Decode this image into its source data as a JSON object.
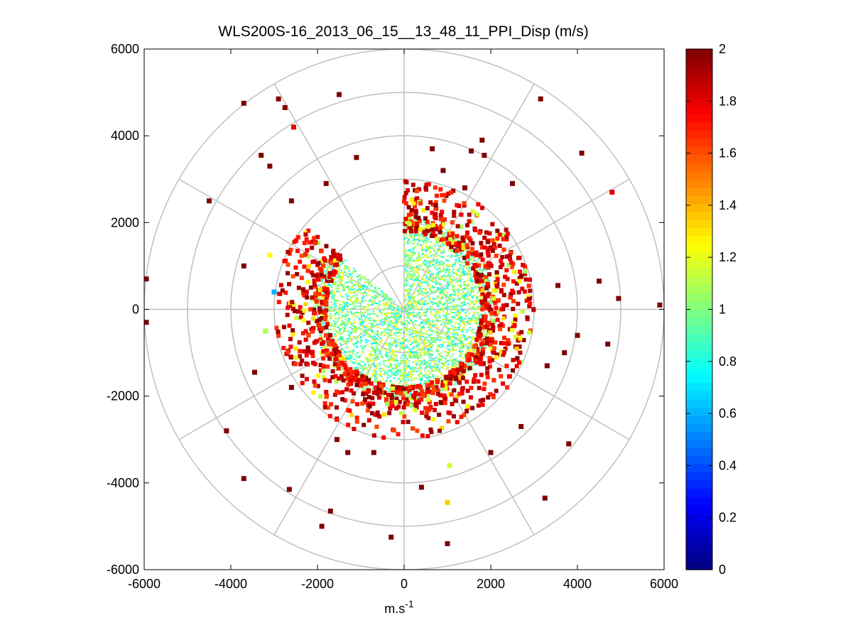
{
  "chart_data": {
    "type": "polar scatter (PPI)",
    "title": "WLS200S-16_2013_06_15__13_48_11_PPI_Disp (m/s)",
    "xlabel_base": "m.s",
    "xlabel_exponent": "-1",
    "ylabel": "",
    "xlim": [
      -6000,
      6000
    ],
    "ylim": [
      -6000,
      6000
    ],
    "xticks": [
      "-6000",
      "-4000",
      "-2000",
      "0",
      "2000",
      "4000",
      "6000"
    ],
    "yticks": [
      "6000",
      "4000",
      "2000",
      "0",
      "-2000",
      "-4000",
      "-6000"
    ],
    "xtick_values": [
      -6000,
      -4000,
      -2000,
      0,
      2000,
      4000,
      6000
    ],
    "ytick_values": [
      6000,
      4000,
      2000,
      0,
      -2000,
      -4000,
      -6000
    ],
    "grid": true,
    "polar_grid": {
      "rings": [
        1000,
        2000,
        3000,
        4000,
        5000,
        6000
      ],
      "spokes_deg": [
        0,
        30,
        60,
        90,
        120,
        150,
        180,
        210,
        240,
        270,
        300,
        330
      ]
    },
    "colorbar": {
      "colormap": "jet",
      "range": [
        0,
        2
      ],
      "ticks": [
        "2",
        "1.8",
        "1.6",
        "1.4",
        "1.2",
        "1",
        "0.8",
        "0.6",
        "0.4",
        "0.2",
        "0"
      ],
      "tick_values": [
        2,
        1.8,
        1.6,
        1.4,
        1.2,
        1,
        0.8,
        0.6,
        0.4,
        0.2,
        0
      ]
    },
    "data_description": {
      "dense_core_radius": 2100,
      "core_value_range": [
        0.7,
        1.3
      ],
      "edge_band_radius": [
        1800,
        3000
      ],
      "edge_value_range": [
        1.6,
        2.0
      ],
      "missing_sector_deg": [
        -50,
        0
      ]
    },
    "outliers": [
      {
        "x": -5950,
        "y": 700,
        "v": 2.0
      },
      {
        "x": -5950,
        "y": -300,
        "v": 2.0
      },
      {
        "x": -4500,
        "y": 2500,
        "v": 2.0
      },
      {
        "x": -3700,
        "y": 4750,
        "v": 2.0
      },
      {
        "x": -2900,
        "y": 4850,
        "v": 2.0
      },
      {
        "x": -2750,
        "y": 4650,
        "v": 2.0
      },
      {
        "x": -2550,
        "y": 4200,
        "v": 1.8
      },
      {
        "x": -1500,
        "y": 4950,
        "v": 2.0
      },
      {
        "x": -3300,
        "y": 3550,
        "v": 2.0
      },
      {
        "x": -3100,
        "y": 3300,
        "v": 2.0
      },
      {
        "x": 3150,
        "y": 4850,
        "v": 2.0
      },
      {
        "x": 4100,
        "y": 3600,
        "v": 2.0
      },
      {
        "x": 4800,
        "y": 2700,
        "v": 1.8
      },
      {
        "x": 5900,
        "y": 100,
        "v": 2.0
      },
      {
        "x": 4950,
        "y": 250,
        "v": 2.0
      },
      {
        "x": 4500,
        "y": 650,
        "v": 2.0
      },
      {
        "x": 3700,
        "y": -1000,
        "v": 2.0
      },
      {
        "x": 4700,
        "y": -800,
        "v": 2.0
      },
      {
        "x": 3800,
        "y": -3100,
        "v": 2.0
      },
      {
        "x": 3250,
        "y": -4350,
        "v": 2.0
      },
      {
        "x": 1000,
        "y": -5400,
        "v": 2.0
      },
      {
        "x": 1000,
        "y": -4450,
        "v": 1.35
      },
      {
        "x": -300,
        "y": -5250,
        "v": 2.0
      },
      {
        "x": -1900,
        "y": -5000,
        "v": 2.0
      },
      {
        "x": -3700,
        "y": -3900,
        "v": 2.0
      },
      {
        "x": -4100,
        "y": -2800,
        "v": 2.0
      },
      {
        "x": -2650,
        "y": -4150,
        "v": 2.0
      },
      {
        "x": -1700,
        "y": -4650,
        "v": 2.0
      },
      {
        "x": -3700,
        "y": 1000,
        "v": 2.0
      },
      {
        "x": -3100,
        "y": 1250,
        "v": 1.25
      },
      {
        "x": -3000,
        "y": 400,
        "v": 0.6
      },
      {
        "x": -3200,
        "y": -500,
        "v": 1.1
      },
      {
        "x": 1800,
        "y": 3900,
        "v": 2.0
      },
      {
        "x": 650,
        "y": 3700,
        "v": 2.0
      },
      {
        "x": 1550,
        "y": 3650,
        "v": 2.0
      },
      {
        "x": 1850,
        "y": 3550,
        "v": 2.0
      },
      {
        "x": 900,
        "y": 3200,
        "v": 2.0
      },
      {
        "x": -1800,
        "y": 2900,
        "v": 2.0
      },
      {
        "x": -1100,
        "y": 3500,
        "v": 2.0
      },
      {
        "x": -2600,
        "y": 2500,
        "v": 2.0
      },
      {
        "x": 1050,
        "y": -3600,
        "v": 1.15
      },
      {
        "x": 400,
        "y": -4100,
        "v": 2.0
      },
      {
        "x": 2500,
        "y": 2900,
        "v": 2.0
      },
      {
        "x": 2000,
        "y": -3300,
        "v": 2.0
      },
      {
        "x": 2700,
        "y": -2700,
        "v": 2.0
      },
      {
        "x": 3300,
        "y": -1300,
        "v": 2.0
      },
      {
        "x": 4000,
        "y": -600,
        "v": 2.0
      },
      {
        "x": 3550,
        "y": 550,
        "v": 2.0
      },
      {
        "x": -1550,
        "y": -3000,
        "v": 2.0
      },
      {
        "x": -1300,
        "y": -3300,
        "v": 2.0
      },
      {
        "x": -2600,
        "y": -1800,
        "v": 2.0
      },
      {
        "x": -3450,
        "y": -1450,
        "v": 2.0
      },
      {
        "x": -700,
        "y": -3300,
        "v": 2.0
      },
      {
        "x": 1400,
        "y": 2800,
        "v": 2.0
      }
    ]
  }
}
